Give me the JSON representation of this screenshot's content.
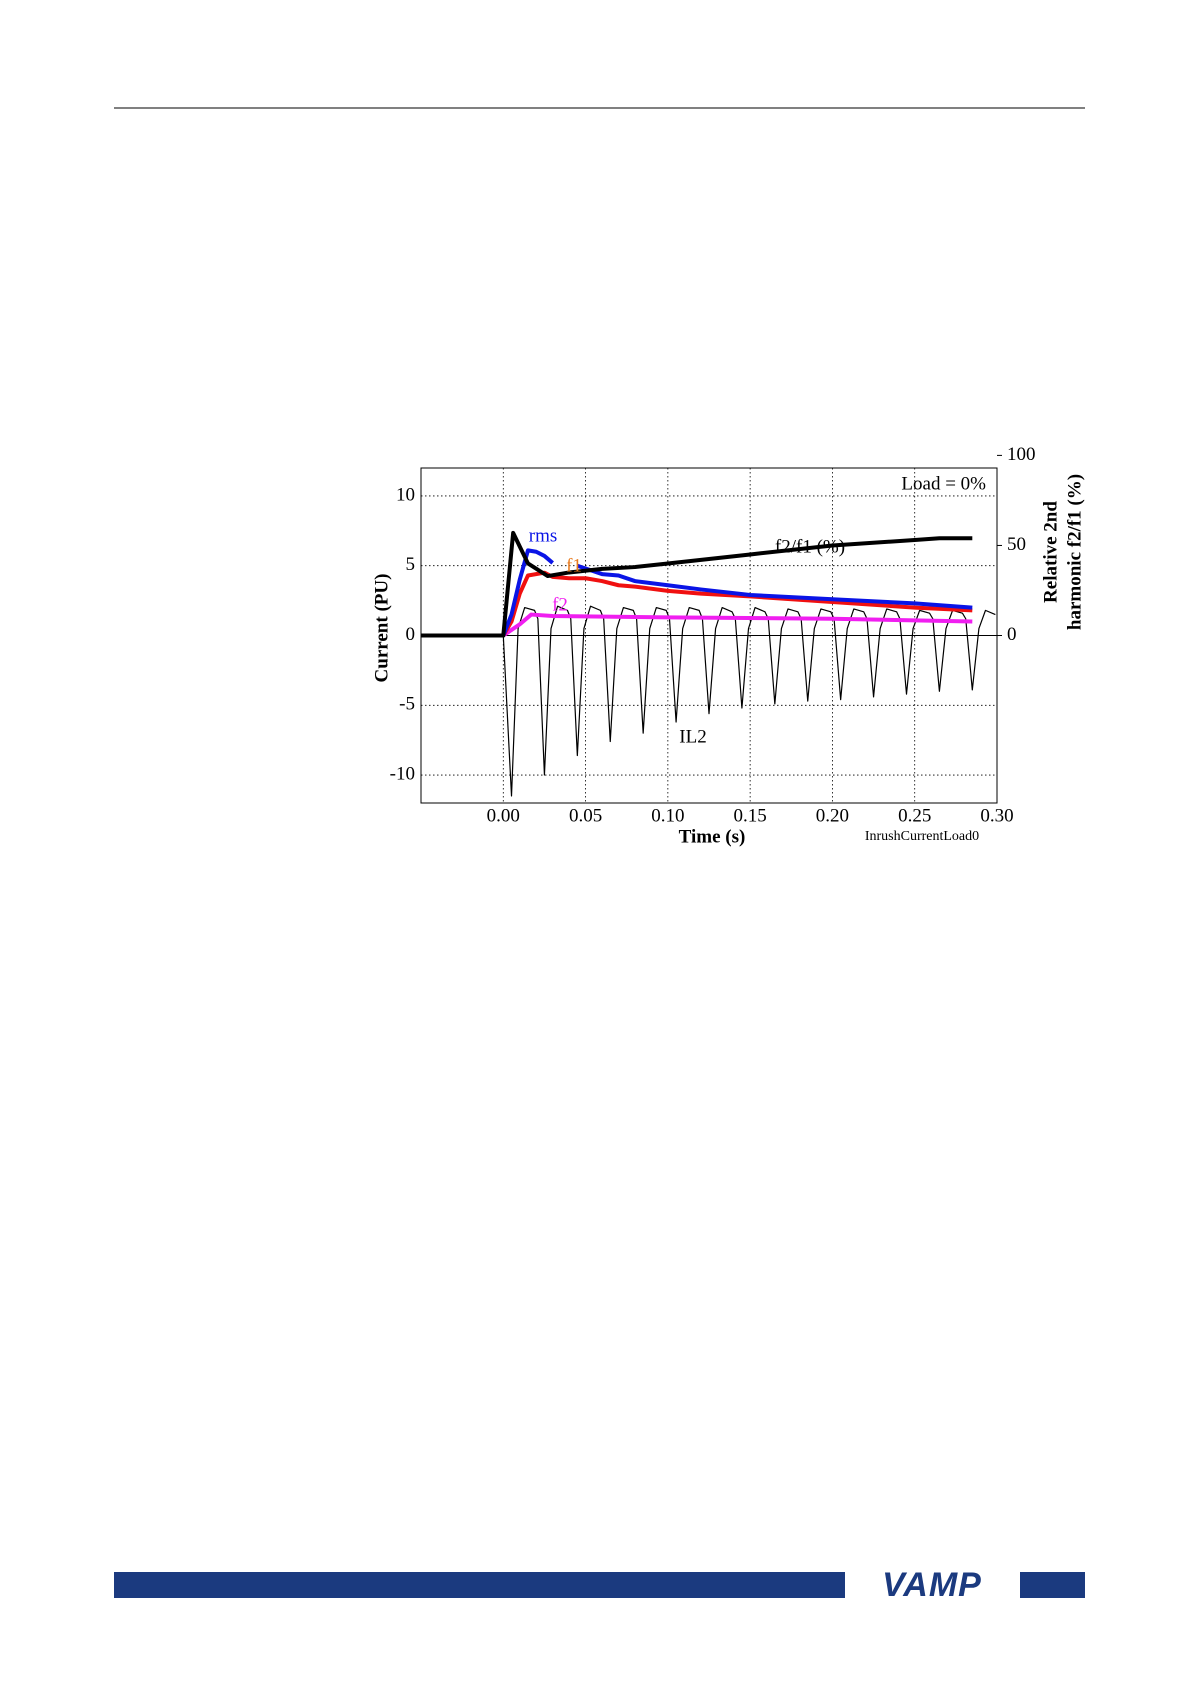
{
  "chart_data": {
    "type": "line",
    "x_label": "Time  (s)",
    "y_label": "Current  (PU)",
    "y2_label": [
      "Relative 2nd",
      "harmonic  f2/f1 (%)"
    ],
    "annotations": [
      "Load = 0%",
      "InrushCurrentLoad0"
    ],
    "xlim": [
      -0.05,
      0.3
    ],
    "ylim": [
      -12,
      12
    ],
    "y2lim": [
      -93,
      93
    ],
    "xticks": [
      {
        "value": 0,
        "label": "0.00"
      },
      0.05,
      {
        "value": 0.1,
        "label": "0.10"
      },
      0.15,
      {
        "value": 0.2,
        "label": "0.20"
      },
      0.25,
      {
        "value": 0.3,
        "label": "0.30"
      }
    ],
    "yticks": [
      -10,
      -5,
      0,
      5,
      10
    ],
    "y2ticks": [
      0,
      50,
      100
    ],
    "grid": true,
    "series": [
      {
        "name": "rms",
        "color": "#0a14e6",
        "x": [
          -0.05,
          0,
          0.005,
          0.01,
          0.015,
          0.02,
          0.025,
          0.03,
          0.035,
          0.045,
          0.05,
          0.06,
          0.07,
          0.08,
          0.1,
          0.12,
          0.15,
          0.2,
          0.25,
          0.285
        ],
        "values": [
          0,
          0,
          1.5,
          4,
          6.1,
          6.0,
          5.7,
          5.2,
          null,
          5.0,
          4.8,
          4.4,
          4.3,
          3.9,
          3.6,
          3.3,
          2.9,
          2.6,
          2.3,
          2.0
        ]
      },
      {
        "name": "f1",
        "color": "#f01010",
        "x": [
          0,
          0.005,
          0.01,
          0.015,
          0.025,
          0.03,
          0.04,
          0.05,
          0.06,
          0.07,
          0.08,
          0.1,
          0.12,
          0.15,
          0.2,
          0.25,
          0.285
        ],
        "values": [
          0,
          1,
          3,
          4.3,
          4.5,
          4.2,
          4.1,
          4.1,
          3.9,
          3.6,
          3.5,
          3.2,
          3.0,
          2.8,
          2.4,
          2.0,
          1.8
        ]
      },
      {
        "name": "f2",
        "color": "#f01ef0",
        "x": [
          0,
          0.01,
          0.017,
          0.03,
          0.1,
          0.2,
          0.285
        ],
        "values": [
          0,
          0.8,
          1.5,
          1.4,
          1.3,
          1.2,
          1.0
        ]
      },
      {
        "name": "f2/f1 (%)",
        "color": "#000000",
        "axis": "y2",
        "x": [
          -0.05,
          0,
          0.006,
          0.015,
          0.027,
          0.04,
          0.06,
          0.08,
          0.1,
          0.15,
          0.2,
          0.25,
          0.265,
          0.285
        ],
        "values": [
          0,
          0,
          57,
          40,
          33,
          35,
          37,
          38,
          40,
          45,
          50,
          53,
          54,
          54
        ]
      },
      {
        "name": "IL2",
        "color": "#000000",
        "x": [
          -0.05,
          0,
          0.005,
          0.009,
          0.013,
          0.019,
          0.021,
          0.025,
          0.029,
          0.033,
          0.039,
          0.041,
          0.045,
          0.049,
          0.053,
          0.059,
          0.061,
          0.065,
          0.069,
          0.073,
          0.079,
          0.081,
          0.085,
          0.089,
          0.093,
          0.099,
          0.101,
          0.105,
          0.109,
          0.113,
          0.119,
          0.121,
          0.125,
          0.129,
          0.133,
          0.139,
          0.141,
          0.145,
          0.149,
          0.153,
          0.159,
          0.161,
          0.165,
          0.169,
          0.173,
          0.179,
          0.181,
          0.185,
          0.189,
          0.193,
          0.199,
          0.201,
          0.205,
          0.209,
          0.213,
          0.219,
          0.221,
          0.225,
          0.229,
          0.233,
          0.239,
          0.241,
          0.245,
          0.249,
          0.253,
          0.259,
          0.261,
          0.265,
          0.269,
          0.273,
          0.279,
          0.281,
          0.285,
          0.289,
          0.293,
          0.299
        ],
        "values": [
          0,
          0,
          -11.5,
          0.5,
          2.0,
          1.8,
          1.2,
          -10.0,
          0.5,
          2.1,
          1.8,
          1.2,
          -8.6,
          0.5,
          2.1,
          1.8,
          1.2,
          -7.6,
          0.5,
          2.0,
          1.8,
          1.2,
          -7.0,
          0.5,
          2.0,
          1.8,
          1.2,
          -6.2,
          0.5,
          2.0,
          1.8,
          1.2,
          -5.6,
          0.5,
          2.0,
          1.7,
          1.2,
          -5.2,
          0.5,
          2.0,
          1.7,
          1.2,
          -4.9,
          0.5,
          1.9,
          1.7,
          1.2,
          -4.7,
          0.5,
          1.9,
          1.7,
          1.2,
          -4.6,
          0.5,
          1.9,
          1.7,
          1.2,
          -4.4,
          0.5,
          1.9,
          1.7,
          1.2,
          -4.2,
          0.5,
          1.8,
          1.6,
          1.2,
          -4.0,
          0.5,
          1.8,
          1.6,
          1.2,
          -3.9,
          0.5,
          1.8,
          1.5
        ]
      }
    ]
  },
  "footer": {
    "logo": "VAMP"
  }
}
